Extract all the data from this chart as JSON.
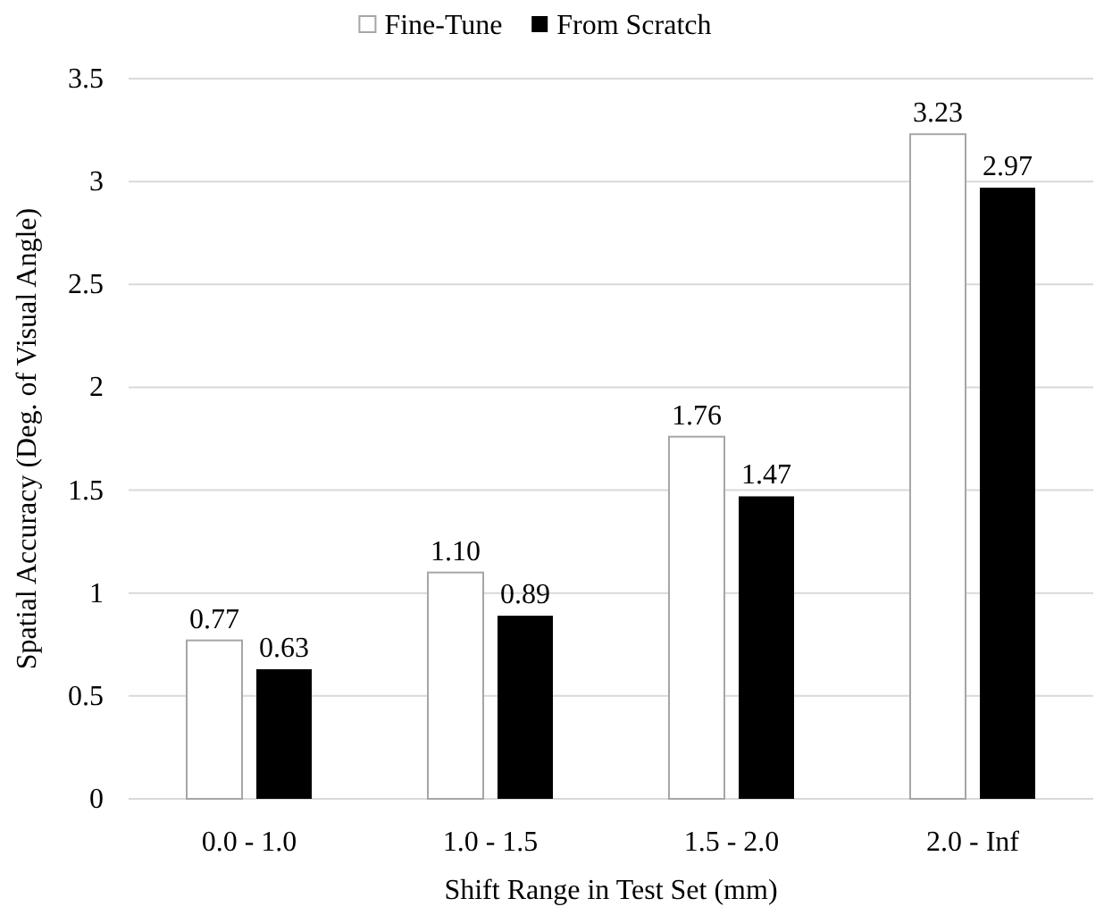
{
  "chart_data": {
    "type": "bar",
    "xlabel": "Shift Range in Test Set (mm)",
    "ylabel": "Spatial Accuracy (Deg. of Visual Angle)",
    "categories": [
      "0.0 - 1.0",
      "1.0 - 1.5",
      "1.5 - 2.0",
      "2.0 - Inf"
    ],
    "series": [
      {
        "name": "Fine-Tune",
        "color": "#ffffff",
        "values": [
          0.77,
          1.1,
          1.76,
          3.23
        ],
        "value_labels": [
          "0.77",
          "1.10",
          "1.76",
          "3.23"
        ]
      },
      {
        "name": "From Scratch",
        "color": "#000000",
        "values": [
          0.63,
          0.89,
          1.47,
          2.97
        ],
        "value_labels": [
          "0.63",
          "0.89",
          "1.47",
          "2.97"
        ]
      }
    ],
    "ylim": [
      0,
      3.5
    ],
    "yticks": [
      0,
      0.5,
      1,
      1.5,
      2,
      2.5,
      3,
      3.5
    ],
    "grid": "y",
    "legend": "top"
  }
}
